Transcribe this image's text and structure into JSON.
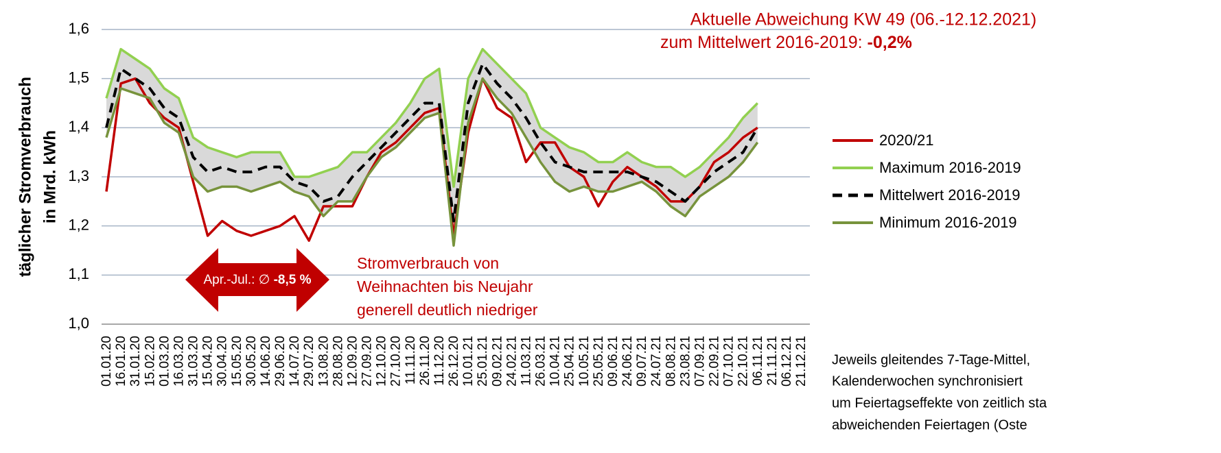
{
  "chart_data": {
    "type": "line",
    "title": "Aktuelle Abweichung KW 49 (06.-12.12.2021)",
    "subtitle": "zum Mittelwert 2016-2019: ",
    "subtitle_value": "-0,2%",
    "y_label": [
      "täglicher Stromverbrauch",
      "in Mrd. kWh"
    ],
    "annotations": {
      "arrow_text": "Apr.-Jul.: ∅ ",
      "arrow_value": "-8,5 %",
      "christmas": [
        "Stromverbrauch von",
        "Weihnachten bis Neujahr",
        "generell deutlich niedriger"
      ],
      "footnote": [
        "Jeweils gleitendes 7-Tage-Mittel,",
        "Kalenderwochen synchronisiert",
        "um Feiertagseffekte von zeitlich sta",
        "abweichenden Feiertagen (Oste"
      ]
    },
    "categories": [
      "01.01.20",
      "16.01.20",
      "31.01.20",
      "15.02.20",
      "01.03.20",
      "16.03.20",
      "31.03.20",
      "15.04.20",
      "30.04.20",
      "15.05.20",
      "30.05.20",
      "14.06.20",
      "29.06.20",
      "14.07.20",
      "29.07.20",
      "13.08.20",
      "28.08.20",
      "12.09.20",
      "27.09.20",
      "12.10.20",
      "27.10.20",
      "11.11.20",
      "26.11.20",
      "11.12.20",
      "26.12.20",
      "10.01.21",
      "25.01.21",
      "09.02.21",
      "24.02.21",
      "11.03.21",
      "26.03.21",
      "10.04.21",
      "25.04.21",
      "10.05.21",
      "25.05.21",
      "09.06.21",
      "24.06.21",
      "09.07.21",
      "24.07.21",
      "08.08.21",
      "23.08.21",
      "07.09.21",
      "22.09.21",
      "07.10.21",
      "22.10.21",
      "06.11.21",
      "21.11.21",
      "06.12.21",
      "21.12.21"
    ],
    "series": [
      {
        "name": "2020/21",
        "color": "#c00000",
        "dash": false,
        "values": [
          1.27,
          1.49,
          1.5,
          1.45,
          1.42,
          1.4,
          1.29,
          1.18,
          1.21,
          1.19,
          1.18,
          1.19,
          1.2,
          1.22,
          1.17,
          1.24,
          1.24,
          1.24,
          1.3,
          1.35,
          1.37,
          1.4,
          1.43,
          1.44,
          1.18,
          1.39,
          1.5,
          1.44,
          1.42,
          1.33,
          1.37,
          1.37,
          1.32,
          1.3,
          1.24,
          1.29,
          1.32,
          1.3,
          1.28,
          1.25,
          1.25,
          1.28,
          1.33,
          1.35,
          1.38,
          1.4,
          null,
          null,
          null
        ]
      },
      {
        "name": "Maximum 2016-2019",
        "color": "#92d050",
        "dash": false,
        "values": [
          1.46,
          1.56,
          1.54,
          1.52,
          1.48,
          1.46,
          1.38,
          1.36,
          1.35,
          1.34,
          1.35,
          1.35,
          1.35,
          1.3,
          1.3,
          1.31,
          1.32,
          1.35,
          1.35,
          1.38,
          1.41,
          1.45,
          1.5,
          1.52,
          1.28,
          1.5,
          1.56,
          1.53,
          1.5,
          1.47,
          1.4,
          1.38,
          1.36,
          1.35,
          1.33,
          1.33,
          1.35,
          1.33,
          1.32,
          1.32,
          1.3,
          1.32,
          1.35,
          1.38,
          1.42,
          1.45,
          null,
          null,
          null
        ]
      },
      {
        "name": "Mittelwert 2016-2019",
        "color": "#000000",
        "dash": true,
        "values": [
          1.4,
          1.52,
          1.5,
          1.48,
          1.44,
          1.42,
          1.34,
          1.31,
          1.32,
          1.31,
          1.31,
          1.32,
          1.32,
          1.29,
          1.28,
          1.25,
          1.26,
          1.3,
          1.33,
          1.36,
          1.39,
          1.42,
          1.45,
          1.45,
          1.21,
          1.45,
          1.53,
          1.49,
          1.46,
          1.42,
          1.37,
          1.33,
          1.32,
          1.31,
          1.31,
          1.31,
          1.31,
          1.3,
          1.29,
          1.27,
          1.25,
          1.28,
          1.31,
          1.33,
          1.35,
          1.4,
          null,
          null,
          null
        ]
      },
      {
        "name": "Minimum 2016-2019",
        "color": "#77933c",
        "dash": false,
        "values": [
          1.38,
          1.48,
          1.47,
          1.46,
          1.41,
          1.39,
          1.3,
          1.27,
          1.28,
          1.28,
          1.27,
          1.28,
          1.29,
          1.27,
          1.26,
          1.22,
          1.25,
          1.25,
          1.3,
          1.34,
          1.36,
          1.39,
          1.42,
          1.43,
          1.16,
          1.41,
          1.5,
          1.46,
          1.43,
          1.38,
          1.33,
          1.29,
          1.27,
          1.28,
          1.27,
          1.27,
          1.28,
          1.29,
          1.27,
          1.24,
          1.22,
          1.26,
          1.28,
          1.3,
          1.33,
          1.37,
          null,
          null,
          null
        ]
      }
    ],
    "band_color": "#d9d9d9",
    "ylim": [
      1.0,
      1.6
    ],
    "yticks": [
      {
        "value": 1.0,
        "label": "1,0"
      },
      {
        "value": 1.1,
        "label": "1,1"
      },
      {
        "value": 1.2,
        "label": "1,2"
      },
      {
        "value": 1.3,
        "label": "1,3"
      },
      {
        "value": 1.4,
        "label": "1,4"
      },
      {
        "value": 1.5,
        "label": "1,5"
      },
      {
        "value": 1.6,
        "label": "1,6"
      }
    ],
    "grid": true
  }
}
